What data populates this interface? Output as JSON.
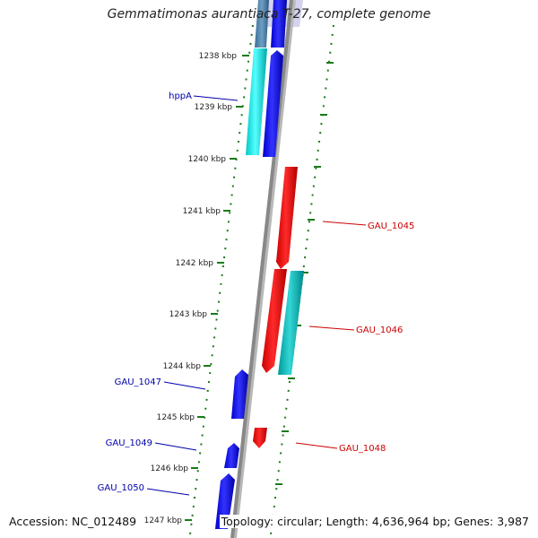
{
  "title": "Gemmatimonas aurantiaca T-27, complete genome",
  "accession": "Accession: NC_012489",
  "summary": "Topology: circular; Length: 4,636,964 bp; Genes: 3,987",
  "ticks": [
    "1238 kbp",
    "1239 kbp",
    "1240 kbp",
    "1241 kbp",
    "1242 kbp",
    "1243 kbp",
    "1244 kbp",
    "1245 kbp",
    "1246 kbp",
    "1247 kbp"
  ],
  "colors": {
    "forward_gene": "#0000ee",
    "reverse_gene": "#ee0000",
    "forward_label": "#0000aa",
    "reverse_label": "#cc0000",
    "ticks": "#1a7a1a",
    "rna_feature": "#00d8d8",
    "backbone": "#888888"
  },
  "genes": [
    {
      "label": "hppA",
      "strand": "forward"
    },
    {
      "label": "GAU_1045",
      "strand": "reverse"
    },
    {
      "label": "GAU_1046",
      "strand": "reverse"
    },
    {
      "label": "GAU_1047",
      "strand": "forward"
    },
    {
      "label": "GAU_1048",
      "strand": "reverse"
    },
    {
      "label": "GAU_1049",
      "strand": "forward"
    },
    {
      "label": "GAU_1050",
      "strand": "forward"
    }
  ]
}
